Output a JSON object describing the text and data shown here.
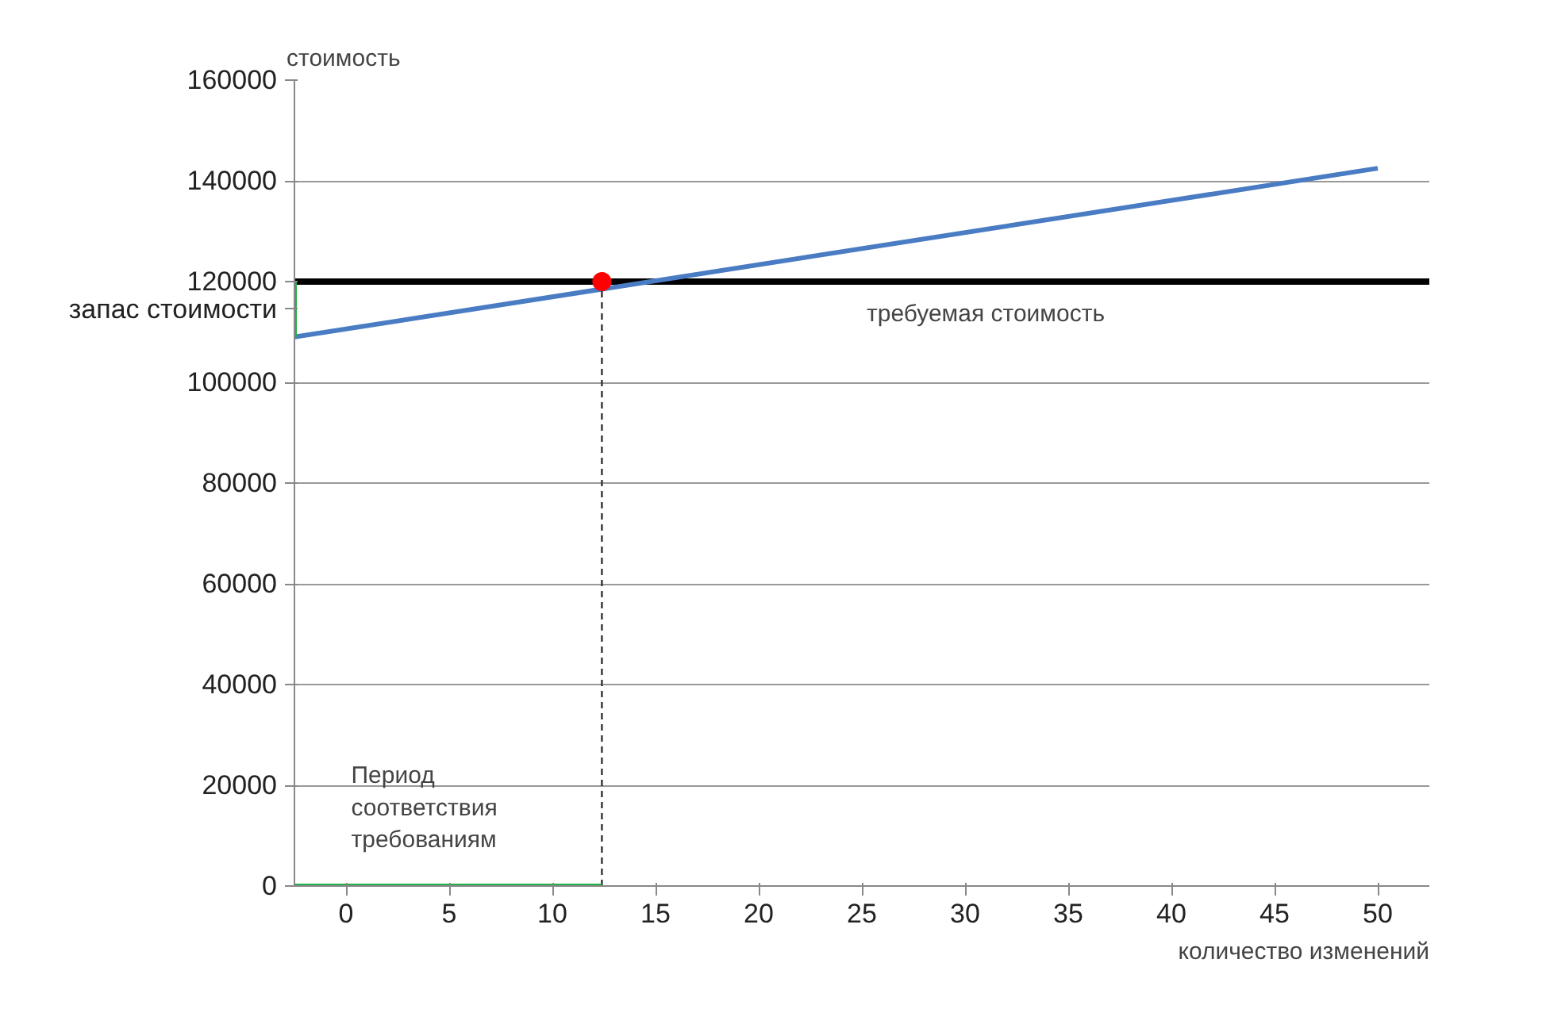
{
  "chart_data": {
    "type": "line",
    "ylabel": "стоимость",
    "xlabel": "количество изменений",
    "xlim": [
      -2.5,
      52.5
    ],
    "xticks": [
      0,
      5,
      10,
      15,
      20,
      25,
      30,
      35,
      40,
      45,
      50
    ],
    "ylim": [
      0,
      160000
    ],
    "yticks": [
      0,
      20000,
      40000,
      60000,
      80000,
      100000,
      120000,
      140000,
      160000
    ],
    "grid": "y",
    "series": [
      {
        "color": "#4a7cc4",
        "x": [
          -2.5,
          50
        ],
        "values": [
          109000,
          142500
        ]
      },
      {
        "type": "line",
        "color": "#333333",
        "line_style": "dashed",
        "x": [
          12.4,
          12.4
        ],
        "values": [
          0,
          120000
        ]
      },
      {
        "type": "line",
        "color": "#22b04a",
        "x": [
          -2.5,
          12.4
        ],
        "values": [
          0,
          0
        ]
      },
      {
        "type": "line",
        "color": "#22b04a",
        "x": [
          -2.5,
          -2.5
        ],
        "values": [
          109000,
          120000
        ]
      },
      {
        "type": "scatter",
        "color": "#ff0000",
        "x": [
          12.4
        ],
        "values": [
          120000
        ]
      }
    ],
    "ref_lines": [
      {
        "axis": "y",
        "value": 120000,
        "label": "требуемая стоимость",
        "color": "#000000"
      }
    ],
    "annotations": [
      {
        "text": "запас стоимости",
        "x": -2.5,
        "y": 114500
      },
      "Период\nсоответствия\nтребованиям"
    ]
  }
}
